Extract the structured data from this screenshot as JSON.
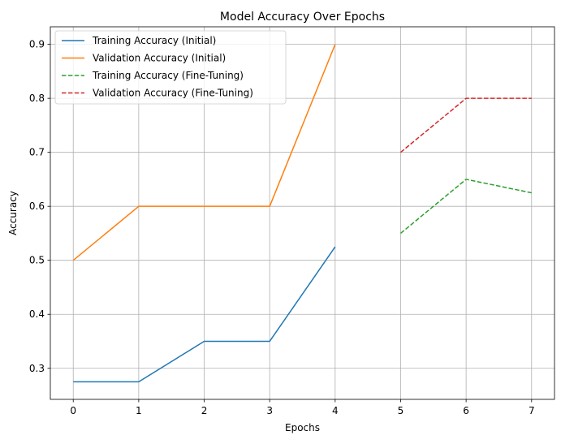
{
  "chart_data": {
    "type": "line",
    "title": "Model Accuracy Over Epochs",
    "xlabel": "Epochs",
    "ylabel": "Accuracy",
    "xlim": [
      -0.35,
      7.35
    ],
    "ylim": [
      0.2425,
      0.9325
    ],
    "xticks": [
      0,
      1,
      2,
      3,
      4,
      5,
      6,
      7
    ],
    "yticks": [
      0.3,
      0.4,
      0.5,
      0.6,
      0.7,
      0.8,
      0.9
    ],
    "ytick_labels": [
      "0.3",
      "0.4",
      "0.5",
      "0.6",
      "0.7",
      "0.8",
      "0.9"
    ],
    "grid": true,
    "legend_position": "upper-left",
    "series": [
      {
        "name": "Training Accuracy (Initial)",
        "x": [
          0,
          1,
          2,
          3,
          4
        ],
        "values": [
          0.275,
          0.275,
          0.35,
          0.35,
          0.525
        ],
        "color": "#1f77b4",
        "style": "solid"
      },
      {
        "name": "Validation Accuracy (Initial)",
        "x": [
          0,
          1,
          2,
          3,
          4
        ],
        "values": [
          0.5,
          0.6,
          0.6,
          0.6,
          0.9
        ],
        "color": "#ff7f0e",
        "style": "solid"
      },
      {
        "name": "Training Accuracy (Fine-Tuning)",
        "x": [
          5,
          6,
          7
        ],
        "values": [
          0.55,
          0.65,
          0.625
        ],
        "color": "#2ca02c",
        "style": "dashed"
      },
      {
        "name": "Validation Accuracy (Fine-Tuning)",
        "x": [
          5,
          6,
          7
        ],
        "values": [
          0.7,
          0.8,
          0.8
        ],
        "color": "#d62728",
        "style": "dashed"
      }
    ]
  }
}
